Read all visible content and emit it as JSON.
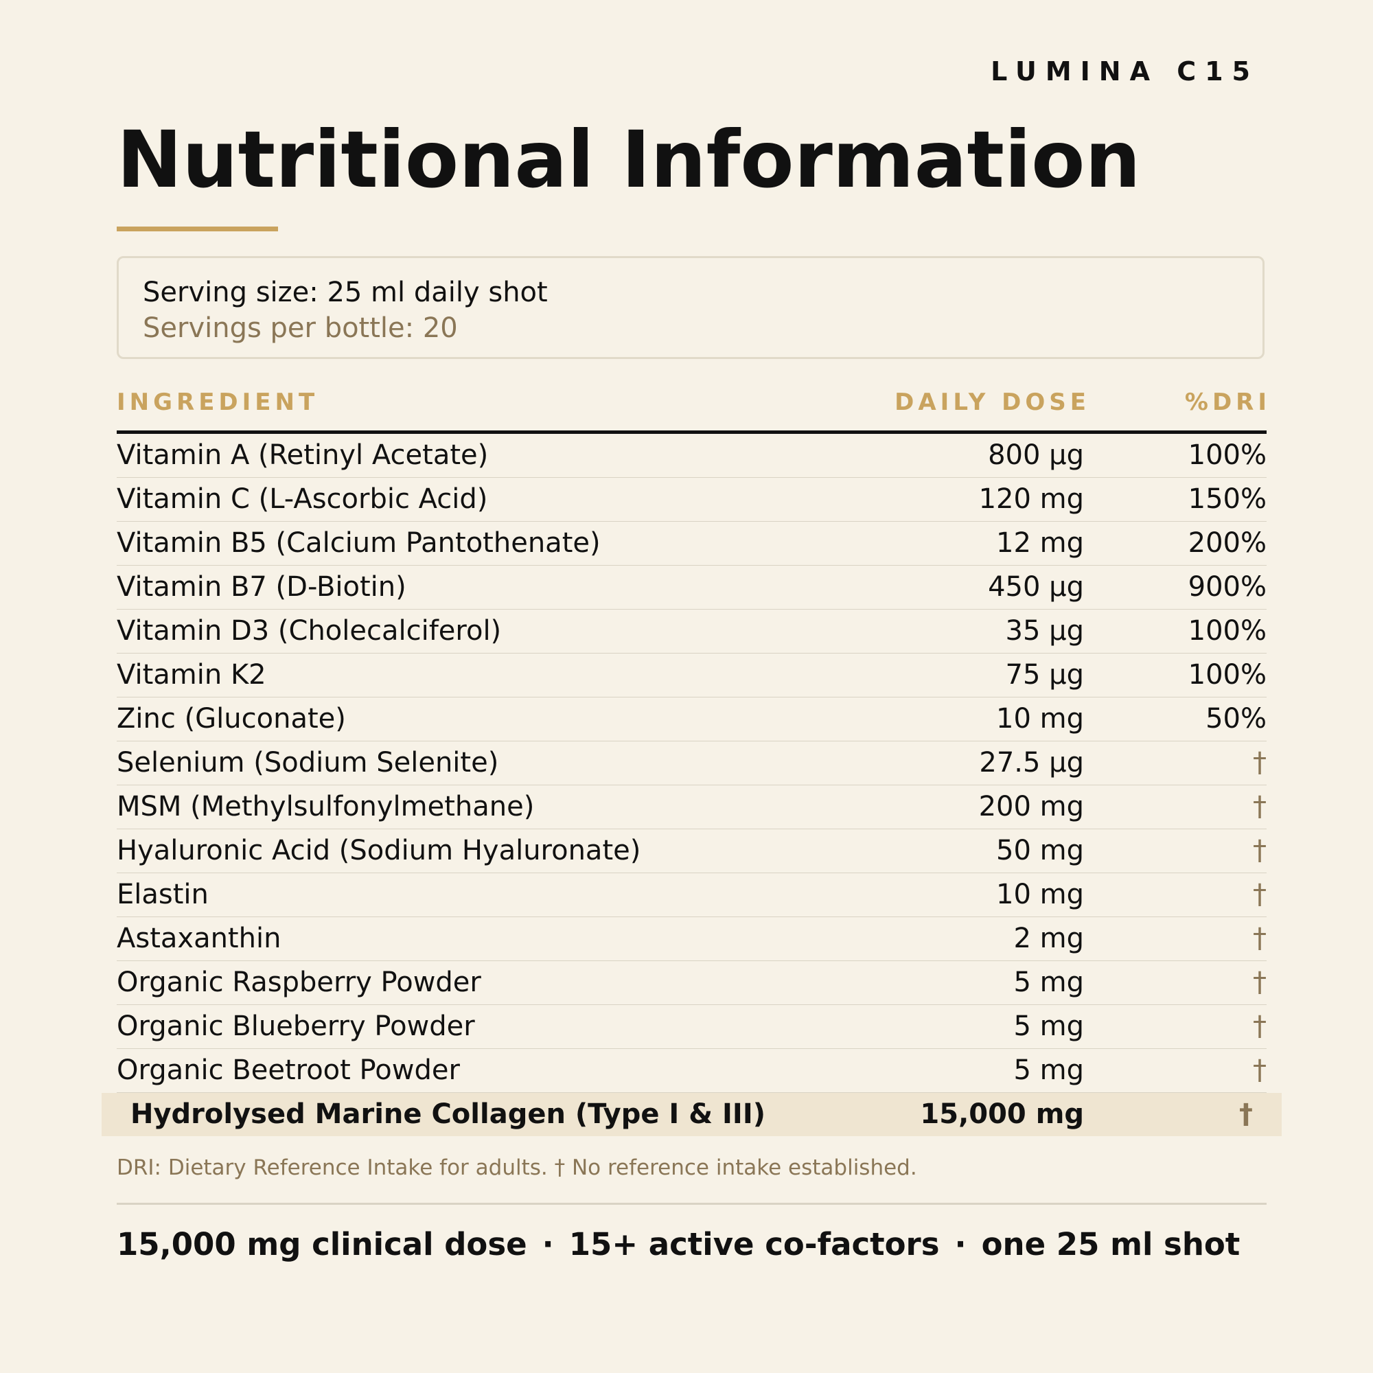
{
  "brand": "LUMINA C15",
  "title": "Nutritional Information",
  "serving": {
    "size": "Serving size: 25 ml daily shot",
    "per_bottle": "Servings per bottle: 20"
  },
  "table": {
    "headers": {
      "ingredient": "INGREDIENT",
      "dose": "DAILY DOSE",
      "dri": "%DRI"
    },
    "rows": [
      {
        "name": "Vitamin A (Retinyl Acetate)",
        "dose": "800 µg",
        "dri": "100%"
      },
      {
        "name": "Vitamin C (L-Ascorbic Acid)",
        "dose": "120 mg",
        "dri": "150%"
      },
      {
        "name": "Vitamin B5 (Calcium Pantothenate)",
        "dose": "12 mg",
        "dri": "200%"
      },
      {
        "name": "Vitamin B7 (D-Biotin)",
        "dose": "450 µg",
        "dri": "900%"
      },
      {
        "name": "Vitamin D3 (Cholecalciferol)",
        "dose": "35 µg",
        "dri": "100%"
      },
      {
        "name": "Vitamin K2",
        "dose": "75 µg",
        "dri": "100%"
      },
      {
        "name": "Zinc (Gluconate)",
        "dose": "10 mg",
        "dri": "50%"
      },
      {
        "name": "Selenium (Sodium Selenite)",
        "dose": "27.5 µg",
        "dri": "†"
      },
      {
        "name": "MSM (Methylsulfonylmethane)",
        "dose": "200 mg",
        "dri": "†"
      },
      {
        "name": "Hyaluronic Acid (Sodium Hyaluronate)",
        "dose": "50 mg",
        "dri": "†"
      },
      {
        "name": "Elastin",
        "dose": "10 mg",
        "dri": "†"
      },
      {
        "name": "Astaxanthin",
        "dose": "2 mg",
        "dri": "†"
      },
      {
        "name": "Organic Raspberry Powder",
        "dose": "5 mg",
        "dri": "†"
      },
      {
        "name": "Organic Blueberry Powder",
        "dose": "5 mg",
        "dri": "†"
      },
      {
        "name": "Organic Beetroot Powder",
        "dose": "5 mg",
        "dri": "†"
      },
      {
        "name": "Hydrolysed Marine Collagen (Type I & III)",
        "dose": "15,000 mg",
        "dri": "†"
      }
    ]
  },
  "footnote": "DRI: Dietary Reference Intake for adults. † No reference intake established.",
  "tagline": {
    "items": [
      "15,000 mg clinical dose",
      "15+ active co-factors",
      "one 25 ml shot"
    ],
    "separator": "·"
  },
  "colors": {
    "background": "#f7f2e7",
    "accent": "#c9a35e",
    "muted": "#8a7656",
    "highlight_row": "#efe5d1",
    "text": "#111111"
  }
}
